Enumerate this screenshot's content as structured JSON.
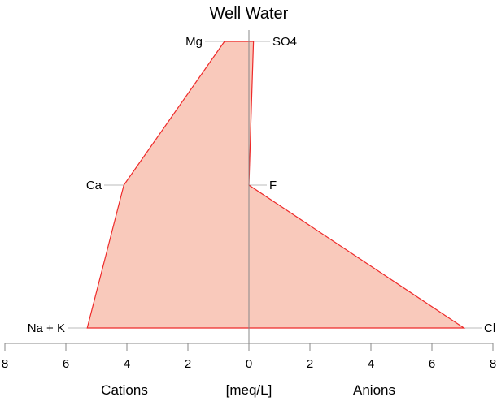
{
  "chart_data": {
    "type": "area",
    "title": "Well Water",
    "xlabel_left": "Cations",
    "xlabel_center": "[meq/L]",
    "xlabel_right": "Anions",
    "xlim": [
      -8,
      8
    ],
    "xticks": [
      -8,
      -6,
      -4,
      -2,
      0,
      2,
      4,
      6,
      8
    ],
    "xtick_labels": [
      "8",
      "6",
      "4",
      "2",
      "0",
      "2",
      "4",
      "6",
      "8"
    ],
    "cations": [
      {
        "name": "Mg",
        "value": 0.8
      },
      {
        "name": "Ca",
        "value": 4.1
      },
      {
        "name": "Na + K",
        "value": 5.3
      }
    ],
    "anions": [
      {
        "name": "SO4",
        "value": 0.15
      },
      {
        "name": "F",
        "value": 0.0
      },
      {
        "name": "Cl",
        "value": 7.05
      }
    ],
    "fill_color": "#f9c9bb",
    "line_color": "#ee2a2a",
    "axis_color": "#888888",
    "grid": false
  }
}
